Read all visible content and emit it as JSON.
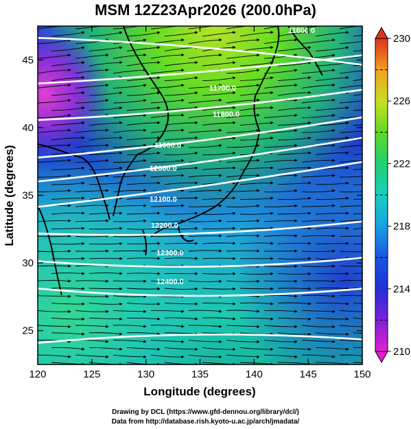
{
  "title": "MSM 12Z23Apr2026 (200.0hPa)",
  "xlabel": "Longitude (degrees)",
  "ylabel": "Latitude  (degrees)",
  "x_ticks": [
    "120",
    "125",
    "130",
    "135",
    "140",
    "145",
    "150"
  ],
  "y_ticks": [
    "25",
    "30",
    "35",
    "40",
    "45"
  ],
  "colorbar_ticks": [
    "210",
    "214",
    "218",
    "222",
    "226",
    "230"
  ],
  "contours": [
    {
      "label": "11600.0",
      "value": 11600
    },
    {
      "label": "11700.0",
      "value": 11700
    },
    {
      "label": "11800.0",
      "value": 11800
    },
    {
      "label": "11900.0",
      "value": 11900
    },
    {
      "label": "12000.0",
      "value": 12000
    },
    {
      "label": "12100.0",
      "value": 12100
    },
    {
      "label": "12200.0",
      "value": 12200
    },
    {
      "label": "12300.0",
      "value": 12300
    },
    {
      "label": "12400.0",
      "value": 12400
    }
  ],
  "footer": {
    "line1": "Drawing by DCL (https://www.gfd-dennou.org/library/dcl/)",
    "line2": "Data from http://database.rish.kyoto-u.ac.jp/arch/jmadata/"
  },
  "chart_data": {
    "type": "heatmap",
    "title": "MSM 12Z23Apr2026 (200.0hPa)",
    "xlabel": "Longitude (degrees)",
    "ylabel": "Latitude  (degrees)",
    "xlim": [
      120,
      150
    ],
    "ylim": [
      22.5,
      47.5
    ],
    "colorbar": {
      "min": 210,
      "max": 230,
      "ticks": [
        210,
        214,
        218,
        222,
        226,
        230
      ]
    },
    "field_samples": [
      {
        "lon": 121,
        "lat": 45,
        "value": 212
      },
      {
        "lon": 121,
        "lat": 42,
        "value": 211
      },
      {
        "lon": 128,
        "lat": 46,
        "value": 218
      },
      {
        "lon": 135,
        "lat": 46,
        "value": 224
      },
      {
        "lon": 140,
        "lat": 46,
        "value": 226
      },
      {
        "lon": 147,
        "lat": 45,
        "value": 222
      },
      {
        "lon": 125,
        "lat": 40,
        "value": 214
      },
      {
        "lon": 135,
        "lat": 40,
        "value": 217
      },
      {
        "lon": 145,
        "lat": 40,
        "value": 219
      },
      {
        "lon": 130,
        "lat": 36,
        "value": 216
      },
      {
        "lon": 140,
        "lat": 36,
        "value": 214
      },
      {
        "lon": 148,
        "lat": 36,
        "value": 214
      },
      {
        "lon": 123,
        "lat": 32,
        "value": 219
      },
      {
        "lon": 135,
        "lat": 32,
        "value": 217
      },
      {
        "lon": 145,
        "lat": 31,
        "value": 215
      },
      {
        "lon": 123,
        "lat": 26,
        "value": 221
      },
      {
        "lon": 132,
        "lat": 25,
        "value": 219
      },
      {
        "lon": 142,
        "lat": 25,
        "value": 214
      },
      {
        "lon": 148,
        "lat": 24,
        "value": 213
      }
    ],
    "colors": {
      "contour": "#ffffff",
      "vectors": "#000000",
      "coast": "#000000"
    }
  }
}
